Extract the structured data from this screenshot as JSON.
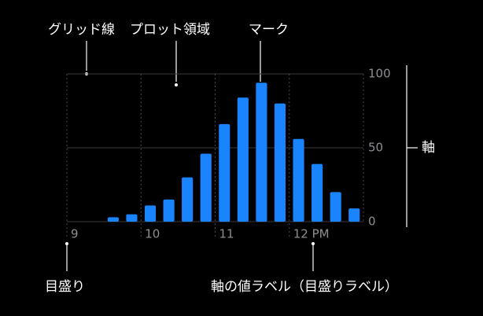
{
  "chart_data": {
    "type": "bar",
    "x": [
      9.625,
      9.875,
      10.125,
      10.375,
      10.625,
      10.875,
      11.125,
      11.375,
      11.625,
      11.875,
      12.125,
      12.375,
      12.625,
      12.875
    ],
    "values": [
      3,
      5,
      11,
      15,
      30,
      46,
      66,
      84,
      94,
      80,
      56,
      39,
      20,
      9
    ],
    "color": "#1a84ff",
    "xlim": [
      9,
      13
    ],
    "xticks": [
      9,
      10,
      11,
      {
        "value": 12,
        "label": "12 PM"
      }
    ],
    "ylim": [
      0,
      100
    ],
    "yticks": [
      0,
      50,
      100
    ],
    "grid": true,
    "annotations": [
      "グリッド線",
      "プロット領域",
      "マーク",
      "軸",
      "目盛り",
      "軸の値ラベル（目盛りラベル）"
    ]
  }
}
